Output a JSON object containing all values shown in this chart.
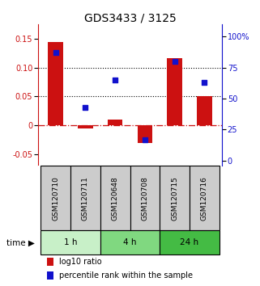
{
  "title": "GDS3433 / 3125",
  "samples": [
    "GSM120710",
    "GSM120711",
    "GSM120648",
    "GSM120708",
    "GSM120715",
    "GSM120716"
  ],
  "log10_ratio": [
    0.145,
    -0.005,
    0.01,
    -0.03,
    0.117,
    0.05
  ],
  "percentile_rank": [
    87,
    43,
    65,
    17,
    80,
    63
  ],
  "time_groups": [
    {
      "label": "1 h",
      "start": 0,
      "end": 2,
      "color": "#c8f0c8"
    },
    {
      "label": "4 h",
      "start": 2,
      "end": 4,
      "color": "#80d880"
    },
    {
      "label": "24 h",
      "start": 4,
      "end": 6,
      "color": "#44bb44"
    }
  ],
  "bar_color": "#cc1111",
  "dot_color": "#1111cc",
  "ylim_left": [
    -0.07,
    0.175
  ],
  "ylim_right": [
    -4.375,
    110
  ],
  "yticks_left": [
    -0.05,
    0.0,
    0.05,
    0.1,
    0.15
  ],
  "ytick_labels_left": [
    "-0.05",
    "0",
    "0.05",
    "0.10",
    "0.15"
  ],
  "yticks_right": [
    0,
    25,
    50,
    75,
    100
  ],
  "ytick_labels_right": [
    "0",
    "25",
    "50",
    "75",
    "100%"
  ],
  "hlines": [
    0.1,
    0.05
  ],
  "bar_width": 0.5,
  "dot_size": 22,
  "title_fontsize": 10,
  "tick_fontsize": 7,
  "label_fontsize": 7.5,
  "legend_fontsize": 7,
  "sample_label_fontsize": 6.5,
  "background_color": "#ffffff",
  "plot_bg": "#ffffff",
  "sample_box_color": "#cccccc",
  "zero_line_color": "#cc1111",
  "grid_color": "#000000"
}
